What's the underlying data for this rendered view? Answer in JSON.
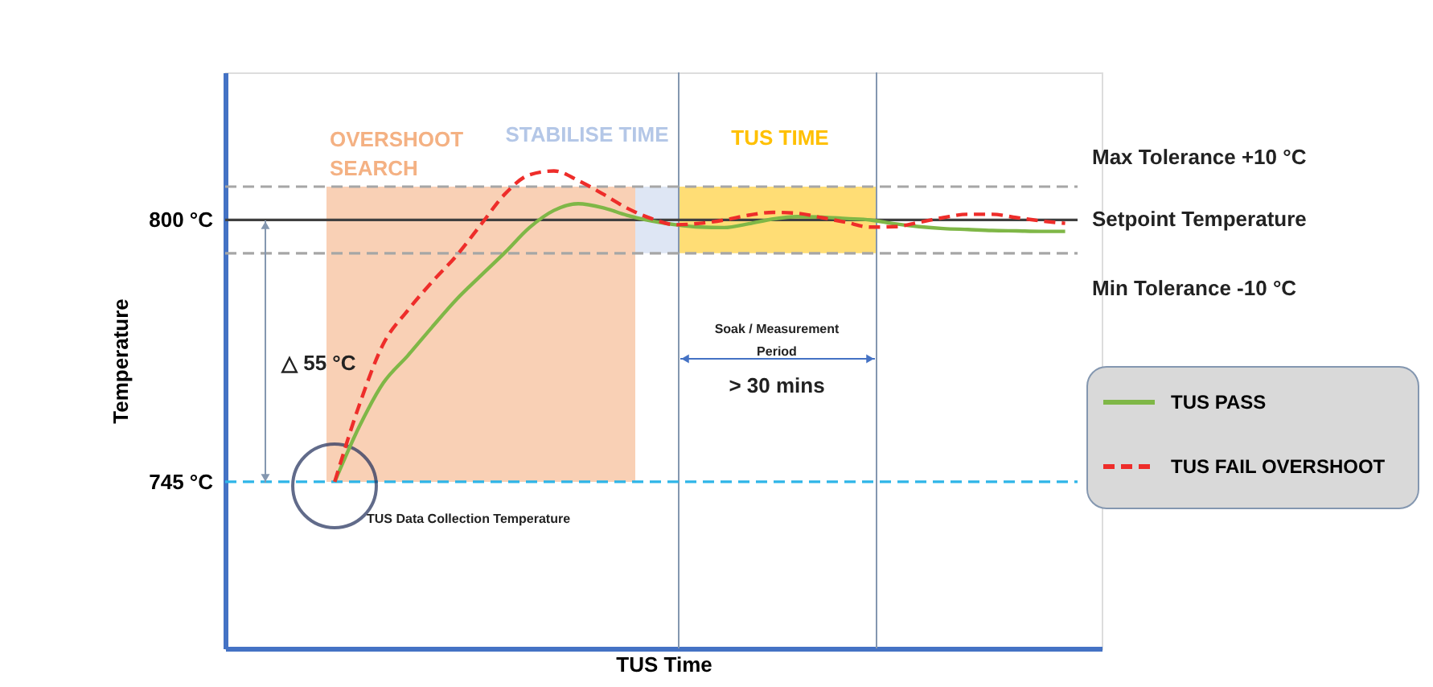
{
  "chart_data": {
    "type": "line",
    "xlabel": "TUS Time",
    "ylabel": "Temperature",
    "categories": [
      null,
      null,
      null,
      null,
      null,
      null,
      null,
      null,
      null,
      null,
      null,
      null,
      null,
      null,
      null,
      null,
      null,
      null,
      null,
      null,
      null,
      null,
      null,
      null,
      null,
      null,
      null,
      null,
      null,
      null,
      null,
      null,
      null,
      null,
      null,
      null
    ],
    "series": [
      {
        "name": "TUS PASS",
        "color": "#7fb747",
        "line_style": "solid",
        "values": [
          null,
          null,
          null,
          null,
          745,
          756.5,
          765.8,
          771.5,
          777.5,
          783.3,
          788.3,
          793.2,
          798.4,
          802,
          803.4,
          802.6,
          801,
          799.8,
          799,
          798.5,
          798.4,
          799.2,
          800.2,
          800.7,
          800.6,
          800.3,
          800,
          799.2,
          798.6,
          798.2,
          798,
          797.8,
          797.7,
          797.6,
          797.6,
          null
        ]
      },
      {
        "name": "TUS FAIL OVERSHOOT",
        "color": "#ee2d2a",
        "line_style": "dashed",
        "values": [
          null,
          null,
          null,
          null,
          745,
          761,
          774,
          781,
          787,
          792.5,
          799,
          805.5,
          809.5,
          810.3,
          808.3,
          805.5,
          802.5,
          800.3,
          799,
          799.3,
          800,
          801,
          801.6,
          801.4,
          800.5,
          799.5,
          798.5,
          798.6,
          799.5,
          800.5,
          801.2,
          801.2,
          800.5,
          799.8,
          799.3,
          null
        ]
      }
    ],
    "ylim": [
      710,
      831
    ],
    "yticks": [
      {
        "value": 745,
        "label": "745 °C"
      },
      {
        "value": 800,
        "label": "800 °C"
      }
    ],
    "tick_labels": "y",
    "grid": false,
    "legend": "right",
    "marker": "none",
    "bands": [
      {
        "axis": "y",
        "from": 745,
        "to": 807,
        "label": "OVERSHOOT SEARCH",
        "color": "#f8cbad"
      },
      {
        "axis": "y",
        "from": 793,
        "to": 807,
        "label": "STABILISE TIME",
        "color": "#dae3f3"
      },
      {
        "axis": "y",
        "from": 793,
        "to": 807,
        "label": "TUS TIME",
        "color": "#ffd966"
      }
    ],
    "ref_lines": [
      {
        "axis": "y",
        "value": 807,
        "label": "Max Tolerance +10 °C",
        "color": "#a6a6a6",
        "line_style": "dashed"
      },
      {
        "axis": "y",
        "value": 800,
        "label": "Setpoint Temperature",
        "color": "#404040",
        "line_style": "solid"
      },
      {
        "axis": "y",
        "value": 793,
        "label": "Min Tolerance -10 °C",
        "color": "#a6a6a6",
        "line_style": "dashed"
      },
      {
        "axis": "y",
        "value": 745,
        "color": "#2eb5e8",
        "line_style": "dashed"
      }
    ],
    "annotations": [
      "△ 55 °C",
      "TUS Data Collection Temperature",
      "Soak / Measurement Period",
      "> 30 mins"
    ]
  }
}
